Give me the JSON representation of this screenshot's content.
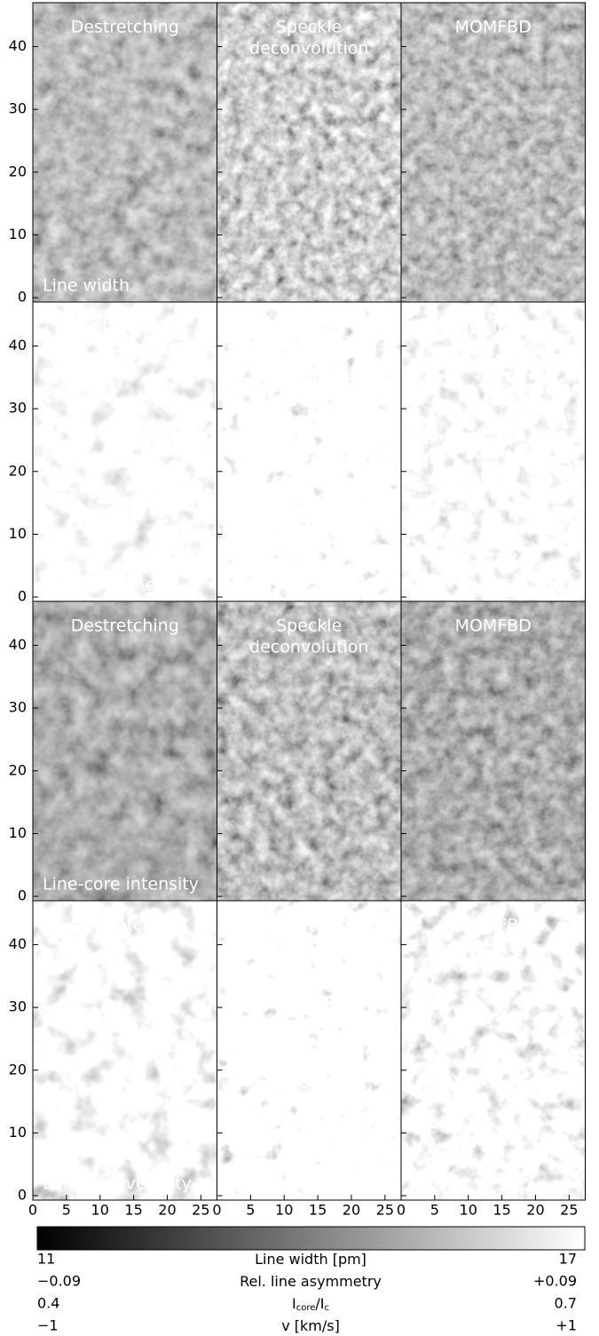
{
  "chart_data": {
    "type": "image-grid",
    "columns": [
      [
        "Destretching"
      ],
      [
        "Speckle",
        "deconvolution"
      ],
      [
        "MOMFBD"
      ]
    ],
    "rows": [
      "Line width",
      "Line asymmetry",
      "Line-core intensity",
      "Line-core velocity"
    ],
    "xlim": [
      0,
      27.4
    ],
    "xticks": [
      0,
      5,
      10,
      15,
      20,
      25
    ],
    "ylim": [
      -0.7,
      47
    ],
    "yticks": [
      0,
      10,
      20,
      30,
      40
    ],
    "colorbar": [
      {
        "min": 11,
        "label": [
          "Line width [pm]"
        ],
        "max": 17
      },
      {
        "min": {
          "value": -0.09,
          "label": "−0.09"
        },
        "label": [
          "Rel. line asymmetry"
        ],
        "max": {
          "value": 0.09,
          "label": "+0.09"
        }
      },
      {
        "min": 0.4,
        "label": [
          "I",
          "core",
          "/I",
          "c"
        ],
        "max": 0.7
      },
      {
        "min": {
          "value": -1,
          "label": "−1"
        },
        "label": [
          "v [km/s]"
        ],
        "max": {
          "value": 1,
          "label": "+1"
        }
      }
    ]
  }
}
